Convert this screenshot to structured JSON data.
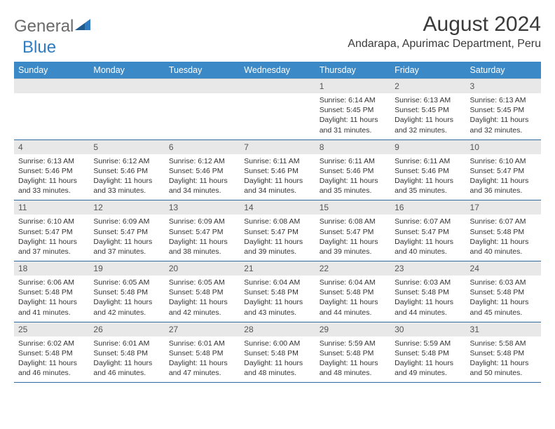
{
  "logo": {
    "text1": "General",
    "text2": "Blue"
  },
  "title": "August 2024",
  "location": "Andarapa, Apurimac Department, Peru",
  "colors": {
    "header_bg": "#3b89c7",
    "header_text": "#ffffff",
    "daynum_bg": "#e8e8e8",
    "cell_border": "#2f6aa0",
    "text": "#333333",
    "logo_gray": "#6a6a6a",
    "logo_blue": "#2f7cc0"
  },
  "weekdays": [
    "Sunday",
    "Monday",
    "Tuesday",
    "Wednesday",
    "Thursday",
    "Friday",
    "Saturday"
  ],
  "weeks": [
    [
      null,
      null,
      null,
      null,
      {
        "n": "1",
        "sr": "6:14 AM",
        "ss": "5:45 PM",
        "dl": "11 hours and 31 minutes."
      },
      {
        "n": "2",
        "sr": "6:13 AM",
        "ss": "5:45 PM",
        "dl": "11 hours and 32 minutes."
      },
      {
        "n": "3",
        "sr": "6:13 AM",
        "ss": "5:45 PM",
        "dl": "11 hours and 32 minutes."
      }
    ],
    [
      {
        "n": "4",
        "sr": "6:13 AM",
        "ss": "5:46 PM",
        "dl": "11 hours and 33 minutes."
      },
      {
        "n": "5",
        "sr": "6:12 AM",
        "ss": "5:46 PM",
        "dl": "11 hours and 33 minutes."
      },
      {
        "n": "6",
        "sr": "6:12 AM",
        "ss": "5:46 PM",
        "dl": "11 hours and 34 minutes."
      },
      {
        "n": "7",
        "sr": "6:11 AM",
        "ss": "5:46 PM",
        "dl": "11 hours and 34 minutes."
      },
      {
        "n": "8",
        "sr": "6:11 AM",
        "ss": "5:46 PM",
        "dl": "11 hours and 35 minutes."
      },
      {
        "n": "9",
        "sr": "6:11 AM",
        "ss": "5:46 PM",
        "dl": "11 hours and 35 minutes."
      },
      {
        "n": "10",
        "sr": "6:10 AM",
        "ss": "5:47 PM",
        "dl": "11 hours and 36 minutes."
      }
    ],
    [
      {
        "n": "11",
        "sr": "6:10 AM",
        "ss": "5:47 PM",
        "dl": "11 hours and 37 minutes."
      },
      {
        "n": "12",
        "sr": "6:09 AM",
        "ss": "5:47 PM",
        "dl": "11 hours and 37 minutes."
      },
      {
        "n": "13",
        "sr": "6:09 AM",
        "ss": "5:47 PM",
        "dl": "11 hours and 38 minutes."
      },
      {
        "n": "14",
        "sr": "6:08 AM",
        "ss": "5:47 PM",
        "dl": "11 hours and 39 minutes."
      },
      {
        "n": "15",
        "sr": "6:08 AM",
        "ss": "5:47 PM",
        "dl": "11 hours and 39 minutes."
      },
      {
        "n": "16",
        "sr": "6:07 AM",
        "ss": "5:47 PM",
        "dl": "11 hours and 40 minutes."
      },
      {
        "n": "17",
        "sr": "6:07 AM",
        "ss": "5:48 PM",
        "dl": "11 hours and 40 minutes."
      }
    ],
    [
      {
        "n": "18",
        "sr": "6:06 AM",
        "ss": "5:48 PM",
        "dl": "11 hours and 41 minutes."
      },
      {
        "n": "19",
        "sr": "6:05 AM",
        "ss": "5:48 PM",
        "dl": "11 hours and 42 minutes."
      },
      {
        "n": "20",
        "sr": "6:05 AM",
        "ss": "5:48 PM",
        "dl": "11 hours and 42 minutes."
      },
      {
        "n": "21",
        "sr": "6:04 AM",
        "ss": "5:48 PM",
        "dl": "11 hours and 43 minutes."
      },
      {
        "n": "22",
        "sr": "6:04 AM",
        "ss": "5:48 PM",
        "dl": "11 hours and 44 minutes."
      },
      {
        "n": "23",
        "sr": "6:03 AM",
        "ss": "5:48 PM",
        "dl": "11 hours and 44 minutes."
      },
      {
        "n": "24",
        "sr": "6:03 AM",
        "ss": "5:48 PM",
        "dl": "11 hours and 45 minutes."
      }
    ],
    [
      {
        "n": "25",
        "sr": "6:02 AM",
        "ss": "5:48 PM",
        "dl": "11 hours and 46 minutes."
      },
      {
        "n": "26",
        "sr": "6:01 AM",
        "ss": "5:48 PM",
        "dl": "11 hours and 46 minutes."
      },
      {
        "n": "27",
        "sr": "6:01 AM",
        "ss": "5:48 PM",
        "dl": "11 hours and 47 minutes."
      },
      {
        "n": "28",
        "sr": "6:00 AM",
        "ss": "5:48 PM",
        "dl": "11 hours and 48 minutes."
      },
      {
        "n": "29",
        "sr": "5:59 AM",
        "ss": "5:48 PM",
        "dl": "11 hours and 48 minutes."
      },
      {
        "n": "30",
        "sr": "5:59 AM",
        "ss": "5:48 PM",
        "dl": "11 hours and 49 minutes."
      },
      {
        "n": "31",
        "sr": "5:58 AM",
        "ss": "5:48 PM",
        "dl": "11 hours and 50 minutes."
      }
    ]
  ],
  "labels": {
    "sunrise": "Sunrise: ",
    "sunset": "Sunset: ",
    "daylight": "Daylight: "
  }
}
